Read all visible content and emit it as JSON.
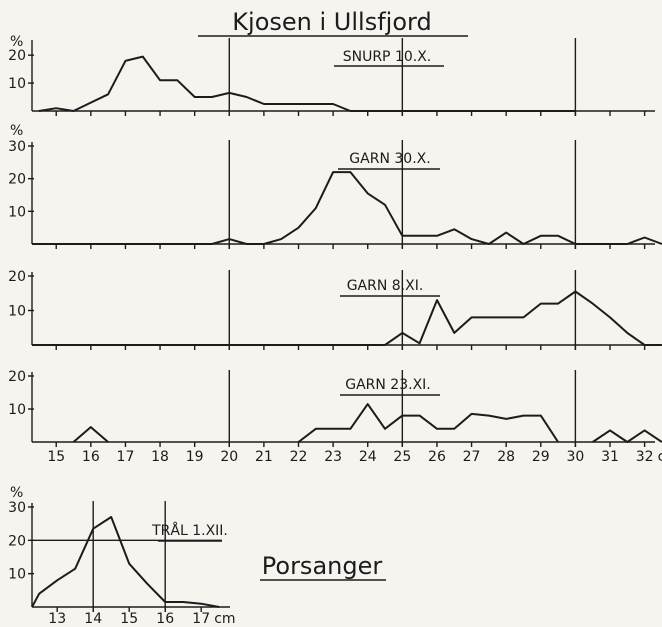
{
  "header": {
    "title": "Kjosen i Ullsfjord"
  },
  "subheading": "Porsanger",
  "chart_data": [
    {
      "type": "line",
      "panel": "snurp",
      "label": "SNURP 10.X.",
      "ylabel": "%",
      "yticks": [
        "10",
        "20"
      ],
      "ylim": [
        0,
        24
      ],
      "xlim": [
        14.3,
        32.3
      ],
      "ref_lines": [
        20,
        25,
        30
      ],
      "x": [
        14.5,
        15,
        15.5,
        16,
        16.5,
        17,
        17.5,
        18,
        18.5,
        19,
        19.5,
        20,
        20.5,
        21,
        21.5,
        22,
        22.5,
        23,
        23.5,
        24,
        24.5,
        25,
        25.5,
        26,
        26.5,
        27,
        27.5,
        28,
        28.5,
        29,
        29.5,
        30
      ],
      "y": [
        0,
        1,
        0,
        3,
        6,
        18,
        19.5,
        11,
        11,
        5,
        5,
        6.5,
        5,
        2.5,
        2.5,
        2.5,
        2.5,
        2.5,
        0,
        0,
        0,
        0,
        0,
        0,
        0,
        0,
        0,
        0,
        0,
        0,
        0,
        0
      ]
    },
    {
      "type": "line",
      "panel": "garn-30x",
      "label": "GARN 30.X.",
      "ylabel": "%",
      "yticks": [
        "10",
        "20",
        "30"
      ],
      "ylim": [
        0,
        30
      ],
      "xlim": [
        14.3,
        32.3
      ],
      "ref_lines": [
        20,
        25,
        30
      ],
      "x": [
        14.3,
        15,
        16,
        17,
        18,
        19,
        19.5,
        20,
        20.5,
        21,
        21.5,
        22,
        22.5,
        23,
        23.5,
        24,
        24.5,
        25,
        25.5,
        26,
        26.5,
        27,
        27.5,
        28,
        28.5,
        29,
        29.5,
        30,
        30.5,
        31,
        31.5,
        32,
        32.5
      ],
      "y": [
        0,
        0,
        0,
        0,
        0,
        0,
        0,
        1.5,
        0,
        0,
        1.5,
        5,
        11,
        22,
        22,
        15.5,
        12,
        2.5,
        2.5,
        2.5,
        4.5,
        1.5,
        0,
        3.5,
        0,
        2.5,
        2.5,
        0,
        0,
        0,
        0,
        2,
        0
      ]
    },
    {
      "type": "line",
      "panel": "garn-8xi",
      "label": "GARN 8.XI.",
      "ylabel": "",
      "yticks": [
        "10",
        "20"
      ],
      "ylim": [
        0,
        20
      ],
      "xlim": [
        14.3,
        32.3
      ],
      "ref_lines": [
        20,
        25,
        30
      ],
      "x": [
        14.3,
        15,
        16,
        17,
        18,
        19,
        20,
        21,
        22,
        23,
        24,
        24.5,
        25,
        25.5,
        26,
        26.5,
        27,
        27.5,
        28,
        28.5,
        29,
        29.5,
        30,
        30.5,
        31,
        31.5,
        32,
        32.5
      ],
      "y": [
        0,
        0,
        0,
        0,
        0,
        0,
        0,
        0,
        0,
        0,
        0,
        0,
        3.5,
        0.5,
        13,
        3.5,
        8,
        8,
        8,
        8,
        12,
        12,
        15.5,
        12,
        8,
        3.5,
        0,
        0
      ]
    },
    {
      "type": "line",
      "panel": "garn-23xi",
      "label": "GARN 23.XI.",
      "ylabel": "",
      "yticks": [
        "10",
        "20"
      ],
      "ylim": [
        0,
        20
      ],
      "xlim": [
        14.3,
        32.3
      ],
      "ref_lines": [
        20,
        25,
        30
      ],
      "xticks": [
        "15",
        "16",
        "17",
        "18",
        "19",
        "20",
        "21",
        "22",
        "23",
        "24",
        "25",
        "26",
        "27",
        "28",
        "29",
        "30",
        "31",
        "32"
      ],
      "xunit": "cm",
      "segments": [
        {
          "x": [
            15.5,
            16,
            16.5
          ],
          "y": [
            0,
            4.5,
            0
          ]
        },
        {
          "x": [
            22,
            22.5,
            23,
            23.5,
            24,
            24.5,
            25,
            25.5,
            26,
            26.5,
            27,
            27.5,
            28,
            28.5,
            29,
            29.5
          ],
          "y": [
            0,
            4,
            4,
            4,
            11.5,
            4,
            8,
            8,
            4,
            4,
            8.5,
            8,
            7,
            8,
            8,
            0
          ]
        },
        {
          "x": [
            30.5,
            31,
            31.5,
            32,
            32.5
          ],
          "y": [
            0,
            3.5,
            0,
            3.5,
            0
          ]
        }
      ]
    },
    {
      "type": "line",
      "panel": "tral",
      "label": "TRÅL 1.XII.",
      "ylabel": "%",
      "yticks": [
        "10",
        "20",
        "30"
      ],
      "ylim": [
        0,
        30
      ],
      "xlim": [
        12.3,
        17.8
      ],
      "ref_lines": [
        14,
        16
      ],
      "href": 20,
      "xticks": [
        "13",
        "14",
        "15",
        "16",
        "17"
      ],
      "xunit": "cm",
      "x": [
        12.3,
        12.5,
        13,
        13.5,
        14,
        14.5,
        15,
        15.5,
        16,
        16.5,
        17,
        17.5
      ],
      "y": [
        0,
        4,
        8,
        11.5,
        23.5,
        27,
        13,
        7,
        1.5,
        1.5,
        1,
        0
      ]
    }
  ]
}
